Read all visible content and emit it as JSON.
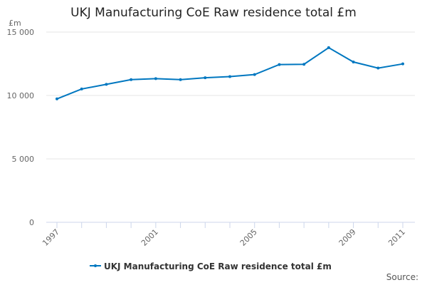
{
  "chart_data": {
    "type": "line",
    "title": "UKJ Manufacturing CoE Raw residence total £m",
    "ylabel": "£m",
    "xlabel": "",
    "x": [
      1997,
      1998,
      1999,
      2000,
      2001,
      2002,
      2003,
      2004,
      2005,
      2006,
      2007,
      2008,
      2009,
      2010,
      2011
    ],
    "x_tick_labels": [
      "1997",
      "2001",
      "2005",
      "2009",
      "2011"
    ],
    "y_ticks": [
      0,
      5000,
      10000,
      15000
    ],
    "y_tick_labels": [
      "0",
      "5 000",
      "10 000",
      "15 000"
    ],
    "ylim": [
      0,
      15000
    ],
    "grid": true,
    "legend_position": "bottom",
    "series": [
      {
        "name": "UKJ Manufacturing CoE Raw residence total £m",
        "color": "#0077c0",
        "values": [
          9730,
          10510,
          10880,
          11250,
          11330,
          11250,
          11400,
          11490,
          11650,
          12440,
          12460,
          13770,
          12640,
          12160,
          12490
        ]
      }
    ]
  },
  "source_label": "Source:"
}
